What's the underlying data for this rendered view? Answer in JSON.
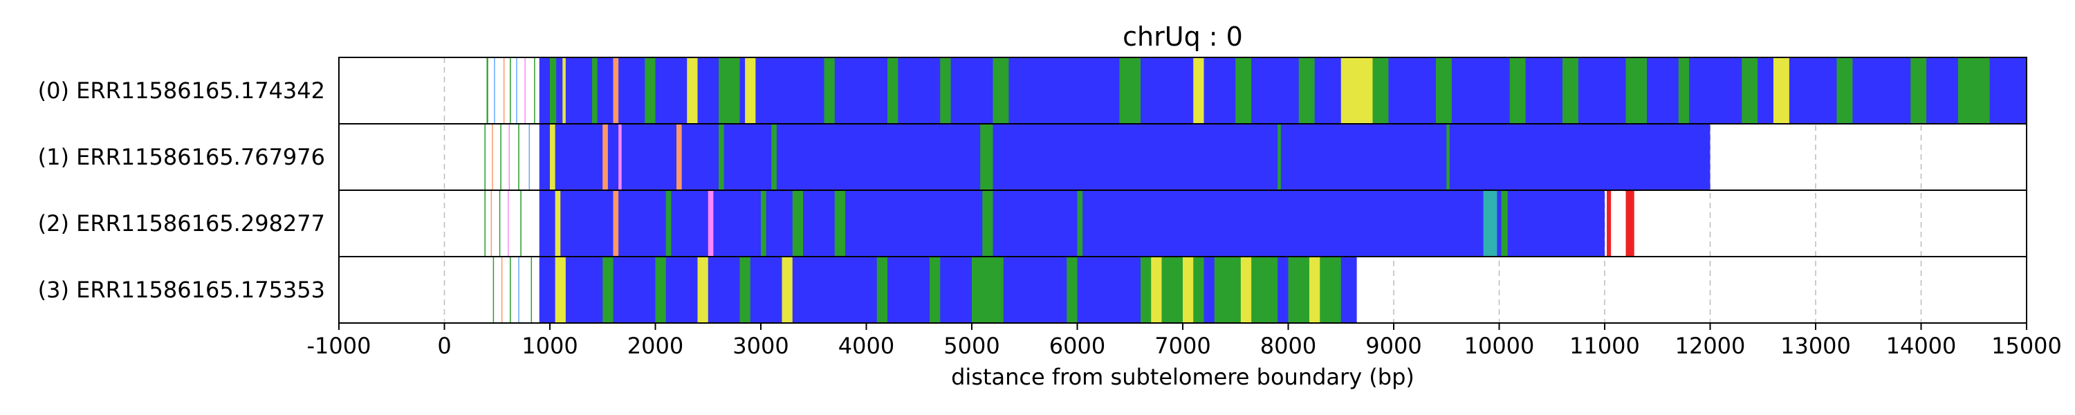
{
  "chart_data": {
    "type": "heatmap",
    "title": "chrUq : 0",
    "xlabel": "distance from subtelomere boundary (bp)",
    "xlim": [
      -1000,
      15000
    ],
    "xticks": [
      -1000,
      0,
      1000,
      2000,
      3000,
      4000,
      5000,
      6000,
      7000,
      8000,
      9000,
      10000,
      11000,
      12000,
      13000,
      14000,
      15000
    ],
    "grid": true,
    "colors": {
      "blue": "#3333ff",
      "green": "#2ca02c",
      "yellow": "#e6e640",
      "pink": "#ff88ff",
      "orange": "#ff9966",
      "cyan": "#30b0b0",
      "red": "#ee2222",
      "olive": "#9acd32",
      "light_blue": "#66aaff",
      "grid": "#bbbbbb"
    },
    "reads": [
      {
        "label": "(0) ERR11586165.174342",
        "start": 0,
        "end": 15000,
        "segments": [
          {
            "start": 900,
            "end": 15000,
            "color": "#3333ff"
          },
          {
            "start": 400,
            "end": 415,
            "color": "#2ca02c"
          },
          {
            "start": 470,
            "end": 480,
            "color": "#66aaff"
          },
          {
            "start": 560,
            "end": 570,
            "color": "#ff9966"
          },
          {
            "start": 620,
            "end": 630,
            "color": "#2ca02c"
          },
          {
            "start": 680,
            "end": 690,
            "color": "#66aaff"
          },
          {
            "start": 760,
            "end": 770,
            "color": "#ff88ff"
          },
          {
            "start": 850,
            "end": 860,
            "color": "#2ca02c"
          },
          {
            "start": 1000,
            "end": 1060,
            "color": "#2ca02c"
          },
          {
            "start": 1120,
            "end": 1150,
            "color": "#e6e640"
          },
          {
            "start": 1400,
            "end": 1450,
            "color": "#2ca02c"
          },
          {
            "start": 1600,
            "end": 1650,
            "color": "#ff9966"
          },
          {
            "start": 1900,
            "end": 2000,
            "color": "#2ca02c"
          },
          {
            "start": 2300,
            "end": 2400,
            "color": "#e6e640"
          },
          {
            "start": 2600,
            "end": 2800,
            "color": "#2ca02c"
          },
          {
            "start": 2850,
            "end": 2950,
            "color": "#e6e640"
          },
          {
            "start": 3600,
            "end": 3700,
            "color": "#2ca02c"
          },
          {
            "start": 4200,
            "end": 4300,
            "color": "#2ca02c"
          },
          {
            "start": 4700,
            "end": 4800,
            "color": "#2ca02c"
          },
          {
            "start": 5200,
            "end": 5350,
            "color": "#2ca02c"
          },
          {
            "start": 6400,
            "end": 6600,
            "color": "#2ca02c"
          },
          {
            "start": 7100,
            "end": 7200,
            "color": "#e6e640"
          },
          {
            "start": 7500,
            "end": 7650,
            "color": "#2ca02c"
          },
          {
            "start": 8100,
            "end": 8250,
            "color": "#2ca02c"
          },
          {
            "start": 8500,
            "end": 8800,
            "color": "#e6e640"
          },
          {
            "start": 8800,
            "end": 8950,
            "color": "#2ca02c"
          },
          {
            "start": 9400,
            "end": 9550,
            "color": "#2ca02c"
          },
          {
            "start": 10100,
            "end": 10250,
            "color": "#2ca02c"
          },
          {
            "start": 10600,
            "end": 10750,
            "color": "#2ca02c"
          },
          {
            "start": 11200,
            "end": 11400,
            "color": "#2ca02c"
          },
          {
            "start": 11700,
            "end": 11800,
            "color": "#2ca02c"
          },
          {
            "start": 12300,
            "end": 12450,
            "color": "#2ca02c"
          },
          {
            "start": 12600,
            "end": 12750,
            "color": "#e6e640"
          },
          {
            "start": 13200,
            "end": 13350,
            "color": "#2ca02c"
          },
          {
            "start": 13900,
            "end": 14050,
            "color": "#2ca02c"
          },
          {
            "start": 14350,
            "end": 14650,
            "color": "#2ca02c"
          }
        ]
      },
      {
        "label": "(1) ERR11586165.767976",
        "start": 0,
        "end": 12000,
        "segments": [
          {
            "start": 900,
            "end": 12000,
            "color": "#3333ff"
          },
          {
            "start": 380,
            "end": 390,
            "color": "#2ca02c"
          },
          {
            "start": 450,
            "end": 460,
            "color": "#ff9966"
          },
          {
            "start": 530,
            "end": 540,
            "color": "#2ca02c"
          },
          {
            "start": 610,
            "end": 620,
            "color": "#ff88ff"
          },
          {
            "start": 700,
            "end": 710,
            "color": "#2ca02c"
          },
          {
            "start": 800,
            "end": 810,
            "color": "#66aaff"
          },
          {
            "start": 1000,
            "end": 1050,
            "color": "#e6e640"
          },
          {
            "start": 1500,
            "end": 1550,
            "color": "#ff9966"
          },
          {
            "start": 1650,
            "end": 1680,
            "color": "#ff88ff"
          },
          {
            "start": 2200,
            "end": 2250,
            "color": "#ff9966"
          },
          {
            "start": 2600,
            "end": 2650,
            "color": "#2ca02c"
          },
          {
            "start": 3100,
            "end": 3150,
            "color": "#2ca02c"
          },
          {
            "start": 5080,
            "end": 5200,
            "color": "#2ca02c"
          },
          {
            "start": 7900,
            "end": 7930,
            "color": "#2ca02c"
          },
          {
            "start": 9500,
            "end": 9530,
            "color": "#2ca02c"
          }
        ]
      },
      {
        "label": "(2) ERR11586165.298277",
        "start": 0,
        "end": 11300,
        "segments": [
          {
            "start": 900,
            "end": 11000,
            "color": "#3333ff"
          },
          {
            "start": 380,
            "end": 390,
            "color": "#2ca02c"
          },
          {
            "start": 440,
            "end": 450,
            "color": "#ff9966"
          },
          {
            "start": 520,
            "end": 530,
            "color": "#2ca02c"
          },
          {
            "start": 600,
            "end": 610,
            "color": "#ff88ff"
          },
          {
            "start": 720,
            "end": 730,
            "color": "#2ca02c"
          },
          {
            "start": 1050,
            "end": 1100,
            "color": "#e6e640"
          },
          {
            "start": 1600,
            "end": 1650,
            "color": "#ff9966"
          },
          {
            "start": 2100,
            "end": 2150,
            "color": "#2ca02c"
          },
          {
            "start": 2500,
            "end": 2550,
            "color": "#ff88ff"
          },
          {
            "start": 3000,
            "end": 3050,
            "color": "#2ca02c"
          },
          {
            "start": 3300,
            "end": 3400,
            "color": "#2ca02c"
          },
          {
            "start": 3700,
            "end": 3800,
            "color": "#2ca02c"
          },
          {
            "start": 5100,
            "end": 5200,
            "color": "#2ca02c"
          },
          {
            "start": 6000,
            "end": 6050,
            "color": "#2ca02c"
          },
          {
            "start": 9850,
            "end": 9980,
            "color": "#30b0b0"
          },
          {
            "start": 10020,
            "end": 10080,
            "color": "#2ca02c"
          },
          {
            "start": 11020,
            "end": 11060,
            "color": "#ee2222"
          },
          {
            "start": 11200,
            "end": 11280,
            "color": "#ee2222"
          }
        ]
      },
      {
        "label": "(3) ERR11586165.175353",
        "start": 0,
        "end": 8650,
        "segments": [
          {
            "start": 900,
            "end": 8650,
            "color": "#3333ff"
          },
          {
            "start": 460,
            "end": 470,
            "color": "#2ca02c"
          },
          {
            "start": 540,
            "end": 550,
            "color": "#ff9966"
          },
          {
            "start": 620,
            "end": 630,
            "color": "#2ca02c"
          },
          {
            "start": 700,
            "end": 710,
            "color": "#66aaff"
          },
          {
            "start": 820,
            "end": 830,
            "color": "#2ca02c"
          },
          {
            "start": 1050,
            "end": 1150,
            "color": "#e6e640"
          },
          {
            "start": 1500,
            "end": 1600,
            "color": "#2ca02c"
          },
          {
            "start": 2000,
            "end": 2100,
            "color": "#2ca02c"
          },
          {
            "start": 2400,
            "end": 2500,
            "color": "#e6e640"
          },
          {
            "start": 2800,
            "end": 2900,
            "color": "#2ca02c"
          },
          {
            "start": 3200,
            "end": 3300,
            "color": "#e6e640"
          },
          {
            "start": 4100,
            "end": 4200,
            "color": "#2ca02c"
          },
          {
            "start": 4600,
            "end": 4700,
            "color": "#2ca02c"
          },
          {
            "start": 5000,
            "end": 5300,
            "color": "#2ca02c"
          },
          {
            "start": 5900,
            "end": 6000,
            "color": "#2ca02c"
          },
          {
            "start": 6600,
            "end": 7200,
            "color": "#2ca02c"
          },
          {
            "start": 6700,
            "end": 6800,
            "color": "#e6e640"
          },
          {
            "start": 7000,
            "end": 7100,
            "color": "#e6e640"
          },
          {
            "start": 7300,
            "end": 7900,
            "color": "#2ca02c"
          },
          {
            "start": 7550,
            "end": 7650,
            "color": "#e6e640"
          },
          {
            "start": 8000,
            "end": 8500,
            "color": "#2ca02c"
          },
          {
            "start": 8200,
            "end": 8300,
            "color": "#e6e640"
          }
        ]
      }
    ]
  }
}
